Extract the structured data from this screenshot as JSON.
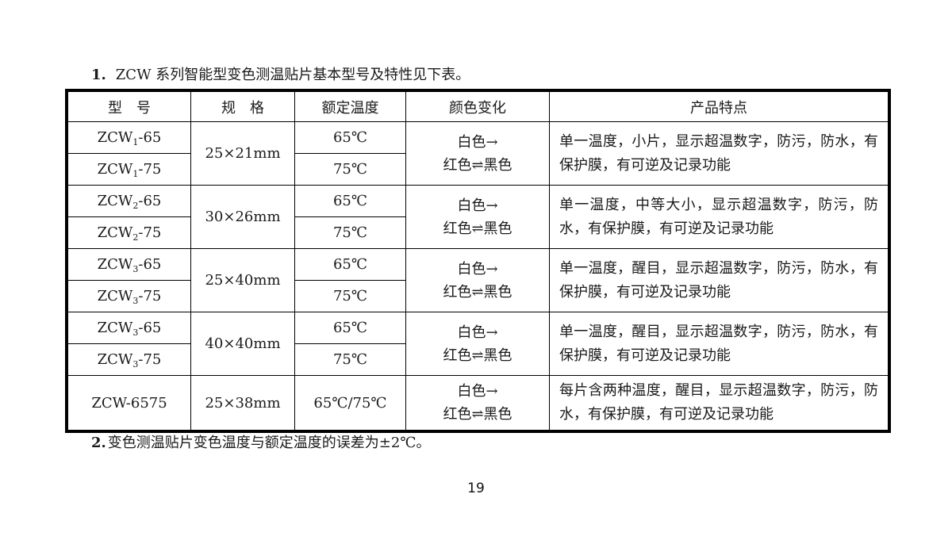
{
  "page": {
    "heading": {
      "number": "1.",
      "text": "ZCW 系列智能型变色测温贴片基本型号及特性见下表。"
    },
    "note": {
      "number": "2.",
      "text": "变色测温贴片变色温度与额定温度的误差为±2℃。"
    },
    "page_number": "19"
  },
  "colors": {
    "text": "#1a1a1a",
    "border": "#000000",
    "background": "#ffffff"
  },
  "table": {
    "headers": {
      "model": "型　号",
      "spec": "规　格",
      "temp": "额定温度",
      "color": "颜色变化",
      "features": "产品特点"
    },
    "groups": [
      {
        "rows": [
          {
            "model": {
              "prefix": "ZCW",
              "sub": "1",
              "suffix": "-65"
            },
            "temp": "65℃"
          },
          {
            "model": {
              "prefix": "ZCW",
              "sub": "1",
              "suffix": "-75"
            },
            "temp": "75℃"
          }
        ],
        "spec": "25×21mm",
        "color_change": {
          "line1": "白色→",
          "line2": "红色⇌黑色"
        },
        "features": "单一温度，小片，显示超温数字，防污，防水，有保护膜，有可逆及记录功能"
      },
      {
        "rows": [
          {
            "model": {
              "prefix": "ZCW",
              "sub": "2",
              "suffix": "-65"
            },
            "temp": "65℃"
          },
          {
            "model": {
              "prefix": "ZCW",
              "sub": "2",
              "suffix": "-75"
            },
            "temp": "75℃"
          }
        ],
        "spec": "30×26mm",
        "color_change": {
          "line1": "白色→",
          "line2": "红色⇌黑色"
        },
        "features": "单一温度，中等大小，显示超温数字，防污，防水，有保护膜，有可逆及记录功能"
      },
      {
        "rows": [
          {
            "model": {
              "prefix": "ZCW",
              "sub": "3",
              "suffix": "-65"
            },
            "temp": "65℃"
          },
          {
            "model": {
              "prefix": "ZCW",
              "sub": "3",
              "suffix": "-75"
            },
            "temp": "75℃"
          }
        ],
        "spec": "25×40mm",
        "color_change": {
          "line1": "白色→",
          "line2": "红色⇌黑色"
        },
        "features": "单一温度，醒目，显示超温数字，防污，防水，有保护膜，有可逆及记录功能"
      },
      {
        "rows": [
          {
            "model": {
              "prefix": "ZCW",
              "sub": "3",
              "suffix": "-65"
            },
            "temp": "65℃"
          },
          {
            "model": {
              "prefix": "ZCW",
              "sub": "3",
              "suffix": "-75"
            },
            "temp": "75℃"
          }
        ],
        "spec": "40×40mm",
        "color_change": {
          "line1": "白色→",
          "line2": "红色⇌黑色"
        },
        "features": "单一温度，醒目，显示超温数字，防污，防水，有保护膜，有可逆及记录功能"
      }
    ],
    "last_row": {
      "model": "ZCW-6575",
      "spec": "25×38mm",
      "temp": "65℃/75℃",
      "color_change": {
        "line1": "白色→",
        "line2": "红色⇌黑色"
      },
      "features": "每片含两种温度，醒目，显示超温数字，防污，防水，有保护膜，有可逆及记录功能"
    }
  }
}
